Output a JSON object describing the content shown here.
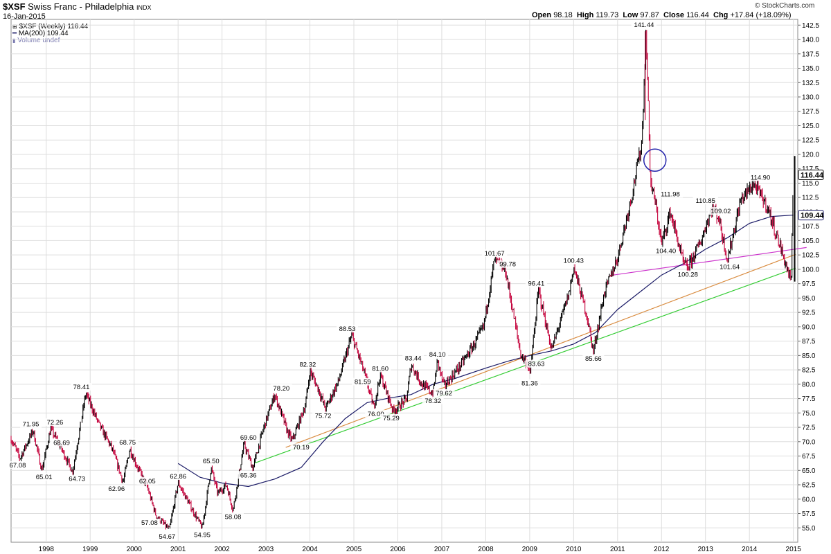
{
  "header": {
    "symbol": "$XSF",
    "name": "Swiss Franc - Philadelphia",
    "exchange": "INDX",
    "date": "16-Jan-2015",
    "brand": "© StockCharts.com",
    "open_label": "Open",
    "open": "98.18",
    "high_label": "High",
    "high": "119.73",
    "low_label": "Low",
    "low": "97.87",
    "close_label": "Close",
    "close": "116.44",
    "chg_label": "Chg",
    "chg": "+17.84 (+18.09%)"
  },
  "legend": {
    "price": "$XSF (Weekly) 116.44",
    "ma": "MA(200) 109.44",
    "volume": "Volume undef"
  },
  "colors": {
    "candle_up": "#000000",
    "candle_down": "#c4003a",
    "ma": "#1a1a66",
    "trend_green": "#33cc33",
    "trend_orange": "#d98c40",
    "trend_magenta": "#cc33cc",
    "circle": "#2222aa",
    "grid": "#dddddd"
  },
  "chart_data": {
    "type": "line",
    "title": "$XSF Swiss Franc - Philadelphia INDX",
    "frequency": "Weekly",
    "ylim": [
      52.5,
      143.5
    ],
    "xlim": [
      1997.2,
      2015.1
    ],
    "y_ticks": [
      "55.0",
      "57.5",
      "60.0",
      "62.5",
      "65.0",
      "67.5",
      "70.0",
      "72.5",
      "75.0",
      "77.5",
      "80.0",
      "82.5",
      "85.0",
      "87.5",
      "90.0",
      "92.5",
      "95.0",
      "97.5",
      "100.0",
      "102.5",
      "105.0",
      "107.5",
      "110.0",
      "112.5",
      "115.0",
      "117.5",
      "120.0",
      "122.5",
      "125.0",
      "127.5",
      "130.0",
      "132.5",
      "135.0",
      "137.5",
      "140.0",
      "142.5"
    ],
    "x_ticks": [
      "1998",
      "1999",
      "2000",
      "2001",
      "2002",
      "2003",
      "2004",
      "2005",
      "2006",
      "2007",
      "2008",
      "2009",
      "2010",
      "2011",
      "2012",
      "2013",
      "2014",
      "2015"
    ],
    "price_path": [
      [
        1997.2,
        70.5
      ],
      [
        1997.4,
        67.08
      ],
      [
        1997.7,
        71.95
      ],
      [
        1997.9,
        65.01
      ],
      [
        1998.1,
        72.26
      ],
      [
        1998.35,
        68.69
      ],
      [
        1998.6,
        64.73
      ],
      [
        1998.9,
        78.41
      ],
      [
        1999.2,
        73.0
      ],
      [
        1999.5,
        68.75
      ],
      [
        1999.75,
        62.96
      ],
      [
        1999.9,
        68.75
      ],
      [
        2000.05,
        66.0
      ],
      [
        2000.3,
        62.05
      ],
      [
        2000.5,
        57.08
      ],
      [
        2000.8,
        54.67
      ],
      [
        2001.0,
        62.86
      ],
      [
        2001.3,
        58.5
      ],
      [
        2001.55,
        54.95
      ],
      [
        2001.75,
        65.5
      ],
      [
        2001.9,
        61.0
      ],
      [
        2002.1,
        62.5
      ],
      [
        2002.25,
        58.08
      ],
      [
        2002.5,
        69.6
      ],
      [
        2002.7,
        65.36
      ],
      [
        2002.95,
        72.5
      ],
      [
        2003.2,
        78.2
      ],
      [
        2003.5,
        71.5
      ],
      [
        2003.6,
        70.19
      ],
      [
        2003.9,
        76.5
      ],
      [
        2004.0,
        82.32
      ],
      [
        2004.2,
        79.0
      ],
      [
        2004.35,
        75.72
      ],
      [
        2004.65,
        80.5
      ],
      [
        2004.95,
        88.53
      ],
      [
        2005.15,
        84.0
      ],
      [
        2005.25,
        81.59
      ],
      [
        2005.45,
        76.0
      ],
      [
        2005.6,
        81.6
      ],
      [
        2005.9,
        75.29
      ],
      [
        2006.2,
        77.5
      ],
      [
        2006.3,
        83.44
      ],
      [
        2006.55,
        80.0
      ],
      [
        2006.8,
        78.32
      ],
      [
        2006.9,
        84.1
      ],
      [
        2007.05,
        79.62
      ],
      [
        2007.4,
        83.0
      ],
      [
        2007.7,
        86.5
      ],
      [
        2007.95,
        90.0
      ],
      [
        2008.2,
        101.67
      ],
      [
        2008.45,
        99.78
      ],
      [
        2008.8,
        85.0
      ],
      [
        2008.95,
        83.63
      ],
      [
        2009.0,
        81.36
      ],
      [
        2009.2,
        96.41
      ],
      [
        2009.5,
        86.0
      ],
      [
        2009.9,
        96.0
      ],
      [
        2010.0,
        100.43
      ],
      [
        2010.3,
        92.0
      ],
      [
        2010.45,
        85.66
      ],
      [
        2010.7,
        96.0
      ],
      [
        2011.0,
        102.0
      ],
      [
        2011.3,
        112.0
      ],
      [
        2011.55,
        122.0
      ],
      [
        2011.65,
        141.44
      ],
      [
        2011.75,
        115.0
      ],
      [
        2011.85,
        111.98
      ],
      [
        2012.0,
        104.4
      ],
      [
        2012.2,
        110.0
      ],
      [
        2012.5,
        101.0
      ],
      [
        2012.6,
        100.28
      ],
      [
        2012.9,
        105.0
      ],
      [
        2013.15,
        110.85
      ],
      [
        2013.3,
        109.02
      ],
      [
        2013.5,
        101.64
      ],
      [
        2013.8,
        112.0
      ],
      [
        2014.1,
        114.9
      ],
      [
        2014.4,
        111.0
      ],
      [
        2014.7,
        104.0
      ],
      [
        2014.95,
        97.87
      ],
      [
        2015.0,
        116.44
      ]
    ],
    "ma200_path": [
      [
        2001.0,
        66.2
      ],
      [
        2001.5,
        63.8
      ],
      [
        2002.0,
        62.8
      ],
      [
        2002.6,
        62.2
      ],
      [
        2003.2,
        63.5
      ],
      [
        2003.8,
        65.5
      ],
      [
        2004.3,
        70.0
      ],
      [
        2004.8,
        74.0
      ],
      [
        2005.3,
        76.8
      ],
      [
        2005.8,
        77.6
      ],
      [
        2006.3,
        78.2
      ],
      [
        2006.8,
        80.0
      ],
      [
        2007.3,
        81.0
      ],
      [
        2008.0,
        82.8
      ],
      [
        2008.5,
        84.0
      ],
      [
        2009.0,
        85.0
      ],
      [
        2009.5,
        85.8
      ],
      [
        2010.0,
        87.0
      ],
      [
        2010.5,
        89.0
      ],
      [
        2011.0,
        93.0
      ],
      [
        2011.5,
        96.0
      ],
      [
        2012.0,
        99.0
      ],
      [
        2012.5,
        101.0
      ],
      [
        2013.0,
        103.5
      ],
      [
        2013.5,
        105.5
      ],
      [
        2014.0,
        108.0
      ],
      [
        2014.5,
        109.2
      ],
      [
        2015.0,
        109.44
      ]
    ],
    "annotations": [
      {
        "x": 1997.35,
        "y": 67.08,
        "text": "67.08",
        "pos": "below"
      },
      {
        "x": 1997.65,
        "y": 71.95,
        "text": "71.95",
        "pos": "above"
      },
      {
        "x": 1997.95,
        "y": 65.01,
        "text": "65.01",
        "pos": "below"
      },
      {
        "x": 1998.2,
        "y": 72.26,
        "text": "72.26",
        "pos": "above"
      },
      {
        "x": 1998.35,
        "y": 68.69,
        "text": "68.69",
        "pos": "above"
      },
      {
        "x": 1998.7,
        "y": 64.73,
        "text": "64.73",
        "pos": "below"
      },
      {
        "x": 1998.8,
        "y": 78.41,
        "text": "78.41",
        "pos": "above"
      },
      {
        "x": 1999.6,
        "y": 62.96,
        "text": "62.96",
        "pos": "below"
      },
      {
        "x": 1999.85,
        "y": 68.75,
        "text": "68.75",
        "pos": "above"
      },
      {
        "x": 2000.3,
        "y": 62.05,
        "text": "62.05",
        "pos": "above"
      },
      {
        "x": 2000.35,
        "y": 57.08,
        "text": "57.08",
        "pos": "below"
      },
      {
        "x": 2000.75,
        "y": 54.67,
        "text": "54.67",
        "pos": "below"
      },
      {
        "x": 2001.0,
        "y": 62.86,
        "text": "62.86",
        "pos": "above"
      },
      {
        "x": 2001.55,
        "y": 54.95,
        "text": "54.95",
        "pos": "below"
      },
      {
        "x": 2001.75,
        "y": 65.5,
        "text": "65.50",
        "pos": "above"
      },
      {
        "x": 2002.25,
        "y": 58.08,
        "text": "58.08",
        "pos": "below"
      },
      {
        "x": 2002.6,
        "y": 69.6,
        "text": "69.60",
        "pos": "above"
      },
      {
        "x": 2002.6,
        "y": 65.36,
        "text": "65.36",
        "pos": "below"
      },
      {
        "x": 2003.35,
        "y": 78.2,
        "text": "78.20",
        "pos": "above"
      },
      {
        "x": 2003.8,
        "y": 70.19,
        "text": "70.19",
        "pos": "below"
      },
      {
        "x": 2003.95,
        "y": 82.32,
        "text": "82.32",
        "pos": "above"
      },
      {
        "x": 2004.3,
        "y": 75.72,
        "text": "75.72",
        "pos": "below"
      },
      {
        "x": 2004.85,
        "y": 88.53,
        "text": "88.53",
        "pos": "above"
      },
      {
        "x": 2005.2,
        "y": 81.59,
        "text": "81.59",
        "pos": "below"
      },
      {
        "x": 2005.6,
        "y": 81.6,
        "text": "81.60",
        "pos": "above"
      },
      {
        "x": 2005.5,
        "y": 76.0,
        "text": "76.00",
        "pos": "below"
      },
      {
        "x": 2005.85,
        "y": 75.29,
        "text": "75.29",
        "pos": "below"
      },
      {
        "x": 2006.35,
        "y": 83.44,
        "text": "83.44",
        "pos": "above"
      },
      {
        "x": 2006.9,
        "y": 84.1,
        "text": "84.10",
        "pos": "above"
      },
      {
        "x": 2006.8,
        "y": 78.32,
        "text": "78.32",
        "pos": "below"
      },
      {
        "x": 2007.05,
        "y": 79.62,
        "text": "79.62",
        "pos": "below"
      },
      {
        "x": 2008.2,
        "y": 101.67,
        "text": "101.67",
        "pos": "above"
      },
      {
        "x": 2008.5,
        "y": 99.78,
        "text": "99.78",
        "pos": "above"
      },
      {
        "x": 2009.15,
        "y": 96.41,
        "text": "96.41",
        "pos": "above"
      },
      {
        "x": 2008.9,
        "y": 83.63,
        "text": "83.63",
        "pos": "right"
      },
      {
        "x": 2009.0,
        "y": 81.36,
        "text": "81.36",
        "pos": "below"
      },
      {
        "x": 2010.0,
        "y": 100.43,
        "text": "100.43",
        "pos": "above"
      },
      {
        "x": 2010.45,
        "y": 85.66,
        "text": "85.66",
        "pos": "below"
      },
      {
        "x": 2011.6,
        "y": 141.44,
        "text": "141.44",
        "pos": "above"
      },
      {
        "x": 2012.2,
        "y": 111.98,
        "text": "111.98",
        "pos": "above"
      },
      {
        "x": 2012.1,
        "y": 104.4,
        "text": "104.40",
        "pos": "below"
      },
      {
        "x": 2012.6,
        "y": 100.28,
        "text": "100.28",
        "pos": "below"
      },
      {
        "x": 2013.0,
        "y": 110.85,
        "text": "110.85",
        "pos": "above"
      },
      {
        "x": 2013.35,
        "y": 109.02,
        "text": "109.02",
        "pos": "above"
      },
      {
        "x": 2013.55,
        "y": 101.64,
        "text": "101.64",
        "pos": "below"
      },
      {
        "x": 2014.25,
        "y": 114.9,
        "text": "114.90",
        "pos": "above"
      }
    ],
    "trendlines": [
      {
        "name": "green",
        "x1": 2002.75,
        "y1": 66.3,
        "x2": 2015.05,
        "y2": 100.2
      },
      {
        "name": "orange",
        "x1": 2003.45,
        "y1": 69.0,
        "x2": 2015.05,
        "y2": 102.6
      },
      {
        "name": "magenta",
        "x1": 2010.9,
        "y1": 99.0,
        "x2": 2015.3,
        "y2": 103.8
      }
    ],
    "last_price": "116.44",
    "last_ma": "109.44"
  }
}
